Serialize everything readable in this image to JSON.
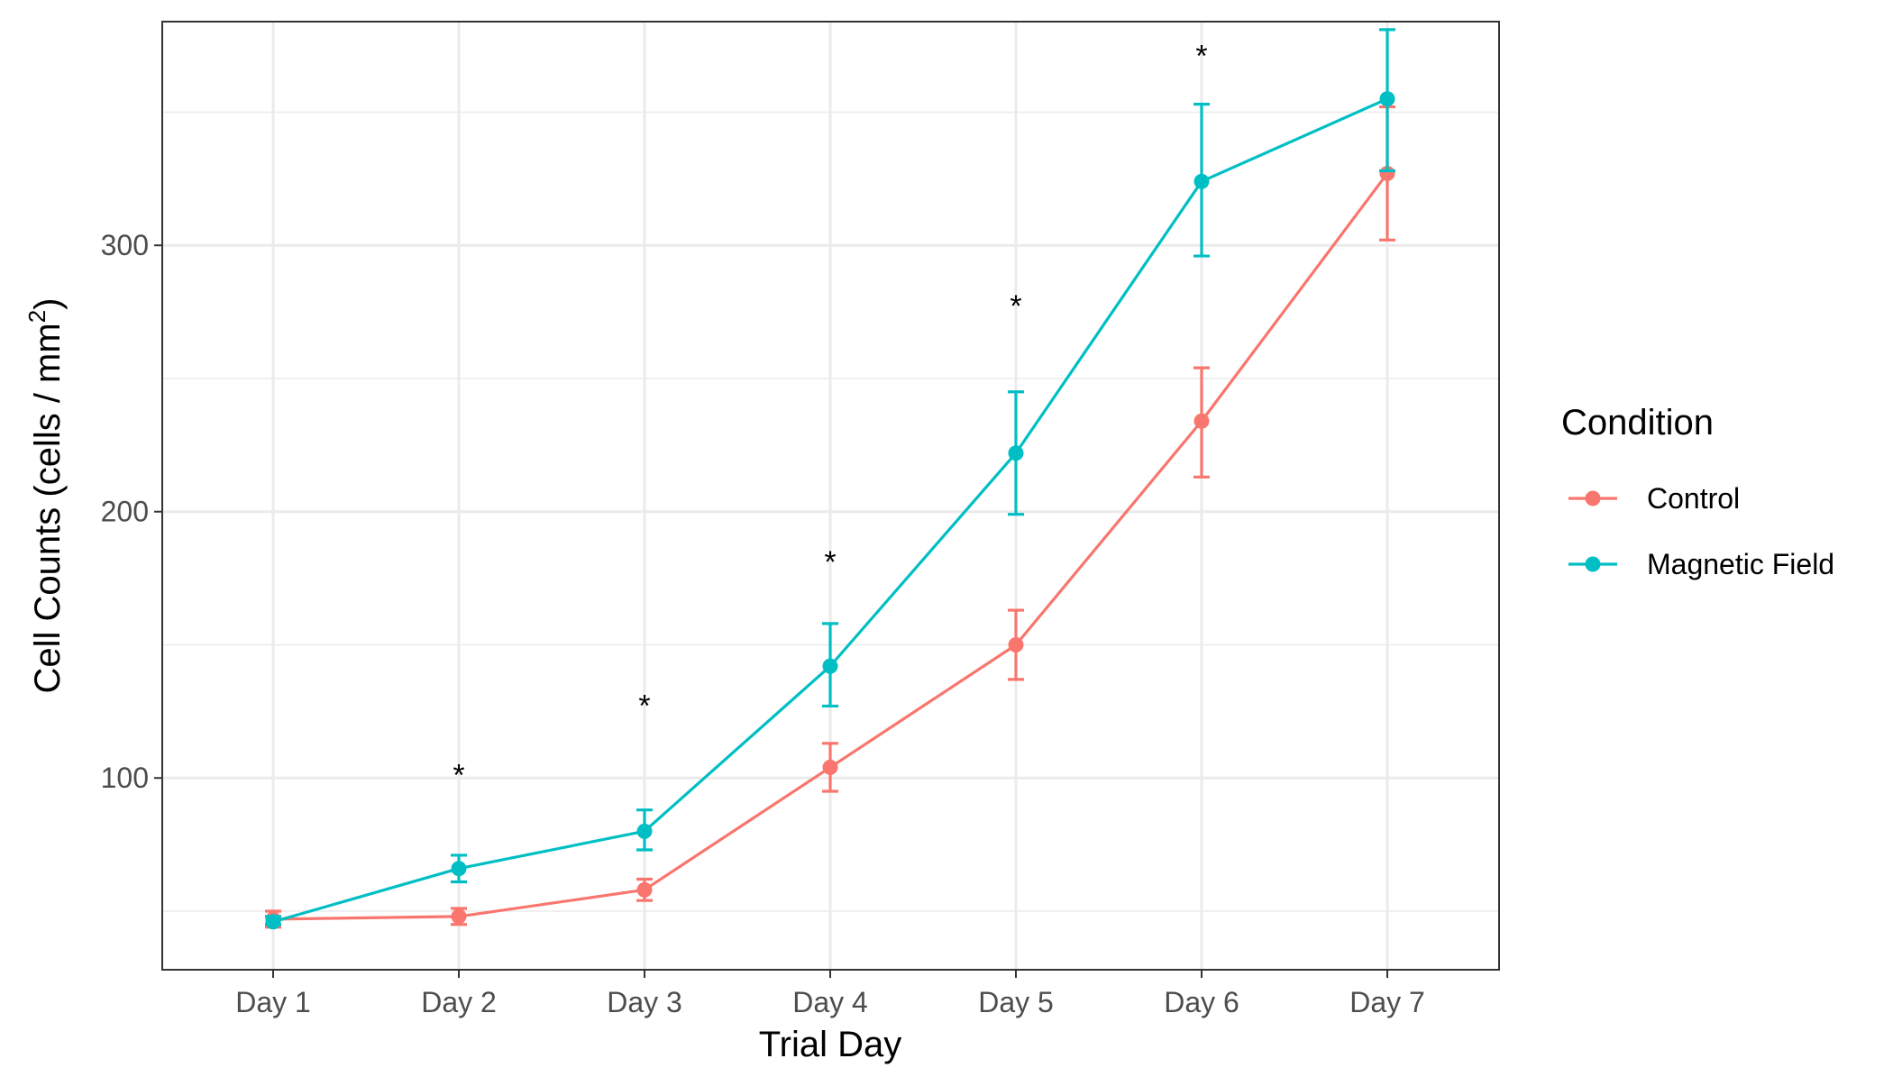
{
  "chart_data": {
    "type": "line",
    "title": "",
    "xlabel": "Trial Day",
    "ylabel_main": "Cell Counts (cells / mm",
    "ylabel_sup": "2",
    "ylabel_close": ")",
    "categories": [
      "Day 1",
      "Day 2",
      "Day 3",
      "Day 4",
      "Day 5",
      "Day 6",
      "Day 7"
    ],
    "ylim": [
      28,
      384
    ],
    "yticks": [
      100,
      200,
      300
    ],
    "ytick_labels": [
      "100",
      "200",
      "300"
    ],
    "grid": true,
    "legend": {
      "title": "Condition",
      "placement": "right"
    },
    "series": [
      {
        "name": "Control",
        "color": "#F8766D",
        "values": [
          47,
          48,
          58,
          104,
          150,
          234,
          327
        ],
        "error_low": [
          44,
          45,
          54,
          95,
          137,
          213,
          302
        ],
        "error_high": [
          50,
          51,
          62,
          113,
          163,
          254,
          352
        ]
      },
      {
        "name": "Magnetic Field",
        "color": "#00BFC4",
        "values": [
          46,
          66,
          80,
          142,
          222,
          324,
          355
        ],
        "error_low": [
          45,
          61,
          73,
          127,
          199,
          296,
          328
        ],
        "error_high": [
          48,
          71,
          88,
          158,
          245,
          353,
          381
        ]
      }
    ],
    "annotations": [
      {
        "category": "Day 2",
        "text": "*",
        "y": 102
      },
      {
        "category": "Day 3",
        "text": "*",
        "y": 128
      },
      {
        "category": "Day 4",
        "text": "*",
        "y": 182
      },
      {
        "category": "Day 5",
        "text": "*",
        "y": 278
      },
      {
        "category": "Day 6",
        "text": "*",
        "y": 372
      }
    ]
  }
}
